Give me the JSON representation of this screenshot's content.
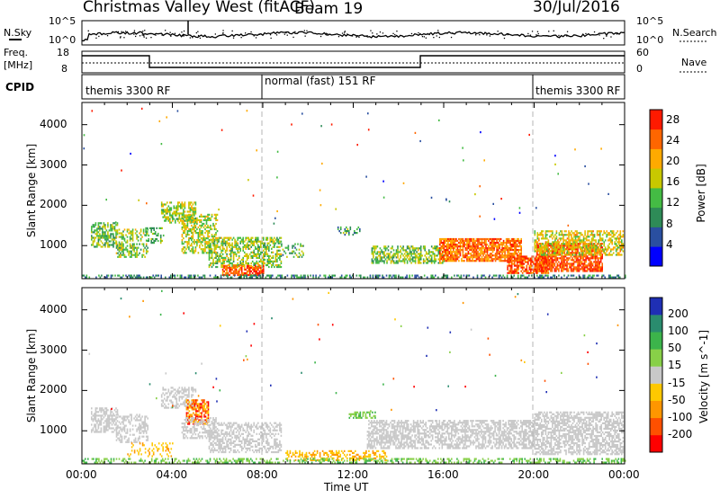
{
  "header": {
    "station": "Christmas Valley West (fitACF)",
    "beam": "Beam 19",
    "date": "30/Jul/2016"
  },
  "summary_labels": {
    "nsky": "N.Sky",
    "nsearch": "N.Search",
    "freq": "Freq.",
    "freq_unit": "[MHz]",
    "nave": "Nave",
    "cpid": "CPID",
    "noise_top": "10^5",
    "noise_bottom": "10^0",
    "freq_top": "18",
    "freq_bottom": "8",
    "nave_top": "60",
    "nave_bottom": "0"
  },
  "cpid_segments": [
    {
      "label": "themis 3300 RF",
      "start_hour": 0
    },
    {
      "label": "normal (fast) 151 RF",
      "start_hour": 8
    },
    {
      "label": "themis 3300 RF",
      "start_hour": 20
    }
  ],
  "colors": {
    "frame": "#000000",
    "grid": "#b4b4b4",
    "ground_scatter": "#c8c8c8"
  },
  "chart_data": [
    {
      "type": "heatmap",
      "panel": "power",
      "xlabel": "",
      "ylabel": "Slant Range [km]",
      "xlim_hours": [
        0,
        24
      ],
      "ylim": [
        180,
        4550
      ],
      "x_ticks": [
        "00:00",
        "04:00",
        "08:00",
        "12:00",
        "16:00",
        "20:00",
        "00:00"
      ],
      "y_ticks": [
        1000,
        2000,
        3000,
        4000
      ],
      "colorbar": {
        "label": "Power [dB]",
        "ticks": [
          4,
          8,
          12,
          16,
          20,
          24,
          28
        ],
        "range": [
          0,
          30
        ],
        "colors": [
          "#0000ff",
          "#2a4fa0",
          "#2e8b57",
          "#44bb44",
          "#c8c800",
          "#ffaa00",
          "#ff6600",
          "#ff1a00"
        ]
      },
      "regions": [
        {
          "t0": 0.4,
          "t1": 1.6,
          "r0": 950,
          "r1": 1550,
          "level": 13,
          "density": 0.55
        },
        {
          "t0": 1.5,
          "t1": 2.9,
          "r0": 700,
          "r1": 1400,
          "level": 15,
          "density": 0.45
        },
        {
          "t0": 2.8,
          "t1": 3.6,
          "r0": 1050,
          "r1": 1450,
          "level": 12,
          "density": 0.4
        },
        {
          "t0": 3.5,
          "t1": 5.0,
          "r0": 1550,
          "r1": 2050,
          "level": 16,
          "density": 0.55
        },
        {
          "t0": 4.4,
          "t1": 6.0,
          "r0": 800,
          "r1": 1750,
          "level": 16,
          "density": 0.5
        },
        {
          "t0": 5.6,
          "t1": 8.8,
          "r0": 450,
          "r1": 1200,
          "level": 15,
          "density": 0.55
        },
        {
          "t0": 6.2,
          "t1": 8.0,
          "r0": 250,
          "r1": 500,
          "level": 25,
          "density": 0.7
        },
        {
          "t0": 8.8,
          "t1": 9.8,
          "r0": 700,
          "r1": 1050,
          "level": 12,
          "density": 0.35
        },
        {
          "t0": 11.3,
          "t1": 12.3,
          "r0": 1250,
          "r1": 1450,
          "level": 11,
          "density": 0.35
        },
        {
          "t0": 12.8,
          "t1": 16.0,
          "r0": 550,
          "r1": 1000,
          "level": 14,
          "density": 0.55
        },
        {
          "t0": 15.8,
          "t1": 19.4,
          "r0": 600,
          "r1": 1150,
          "level": 24,
          "density": 0.8
        },
        {
          "t0": 18.8,
          "t1": 20.6,
          "r0": 300,
          "r1": 750,
          "level": 26,
          "density": 0.75
        },
        {
          "t0": 20.1,
          "t1": 23.0,
          "r0": 350,
          "r1": 1050,
          "level": 26,
          "density": 0.8
        },
        {
          "t0": 20.0,
          "t1": 23.9,
          "r0": 750,
          "r1": 1350,
          "level": 18,
          "density": 0.55
        },
        {
          "t0": 0.0,
          "t1": 24.0,
          "r0": 190,
          "r1": 280,
          "level": 9,
          "density": 0.45
        }
      ]
    },
    {
      "type": "heatmap",
      "panel": "velocity",
      "xlabel": "Time UT",
      "ylabel": "Slant Range [km]",
      "xlim_hours": [
        0,
        24
      ],
      "ylim": [
        180,
        4550
      ],
      "x_ticks": [
        "00:00",
        "04:00",
        "08:00",
        "12:00",
        "16:00",
        "20:00",
        "00:00"
      ],
      "y_ticks": [
        1000,
        2000,
        3000,
        4000
      ],
      "colorbar": {
        "label": "Velocity [m s^-1]",
        "ticks": [
          "200",
          "100",
          "50",
          "15",
          "-15",
          "-50",
          "-100",
          "-200"
        ],
        "colors": [
          "#1f2fb4",
          "#2a8c6e",
          "#3cb44b",
          "#88d048",
          "#c8c8c8",
          "#ffc800",
          "#ff9600",
          "#ff5000",
          "#ff0000"
        ]
      },
      "regions": [
        {
          "t0": 0.4,
          "t1": 1.6,
          "r0": 950,
          "r1": 1550,
          "class": "gs",
          "density": 0.5
        },
        {
          "t0": 1.5,
          "t1": 2.9,
          "r0": 700,
          "r1": 1400,
          "class": "gs",
          "density": 0.4
        },
        {
          "t0": 3.5,
          "t1": 5.0,
          "r0": 1550,
          "r1": 2050,
          "class": "gs",
          "density": 0.5
        },
        {
          "t0": 4.6,
          "t1": 5.6,
          "r0": 1150,
          "r1": 1750,
          "class": "neg",
          "density": 0.6
        },
        {
          "t0": 4.4,
          "t1": 6.0,
          "r0": 800,
          "r1": 1300,
          "class": "gs",
          "density": 0.45
        },
        {
          "t0": 5.6,
          "t1": 8.8,
          "r0": 450,
          "r1": 1200,
          "class": "gs",
          "density": 0.5
        },
        {
          "t0": 2.0,
          "t1": 4.0,
          "r0": 350,
          "r1": 700,
          "class": "weakneg",
          "density": 0.25
        },
        {
          "t0": 9.0,
          "t1": 13.5,
          "r0": 250,
          "r1": 500,
          "class": "weakneg",
          "density": 0.45
        },
        {
          "t0": 11.8,
          "t1": 13.0,
          "r0": 1300,
          "r1": 1450,
          "class": "pos",
          "density": 0.6
        },
        {
          "t0": 12.6,
          "t1": 20.0,
          "r0": 550,
          "r1": 1250,
          "class": "gs",
          "density": 0.6
        },
        {
          "t0": 20.0,
          "t1": 23.9,
          "r0": 400,
          "r1": 1450,
          "class": "gs",
          "density": 0.6
        },
        {
          "t0": 0.0,
          "t1": 24.0,
          "r0": 190,
          "r1": 300,
          "class": "pos",
          "density": 0.4
        }
      ]
    }
  ]
}
